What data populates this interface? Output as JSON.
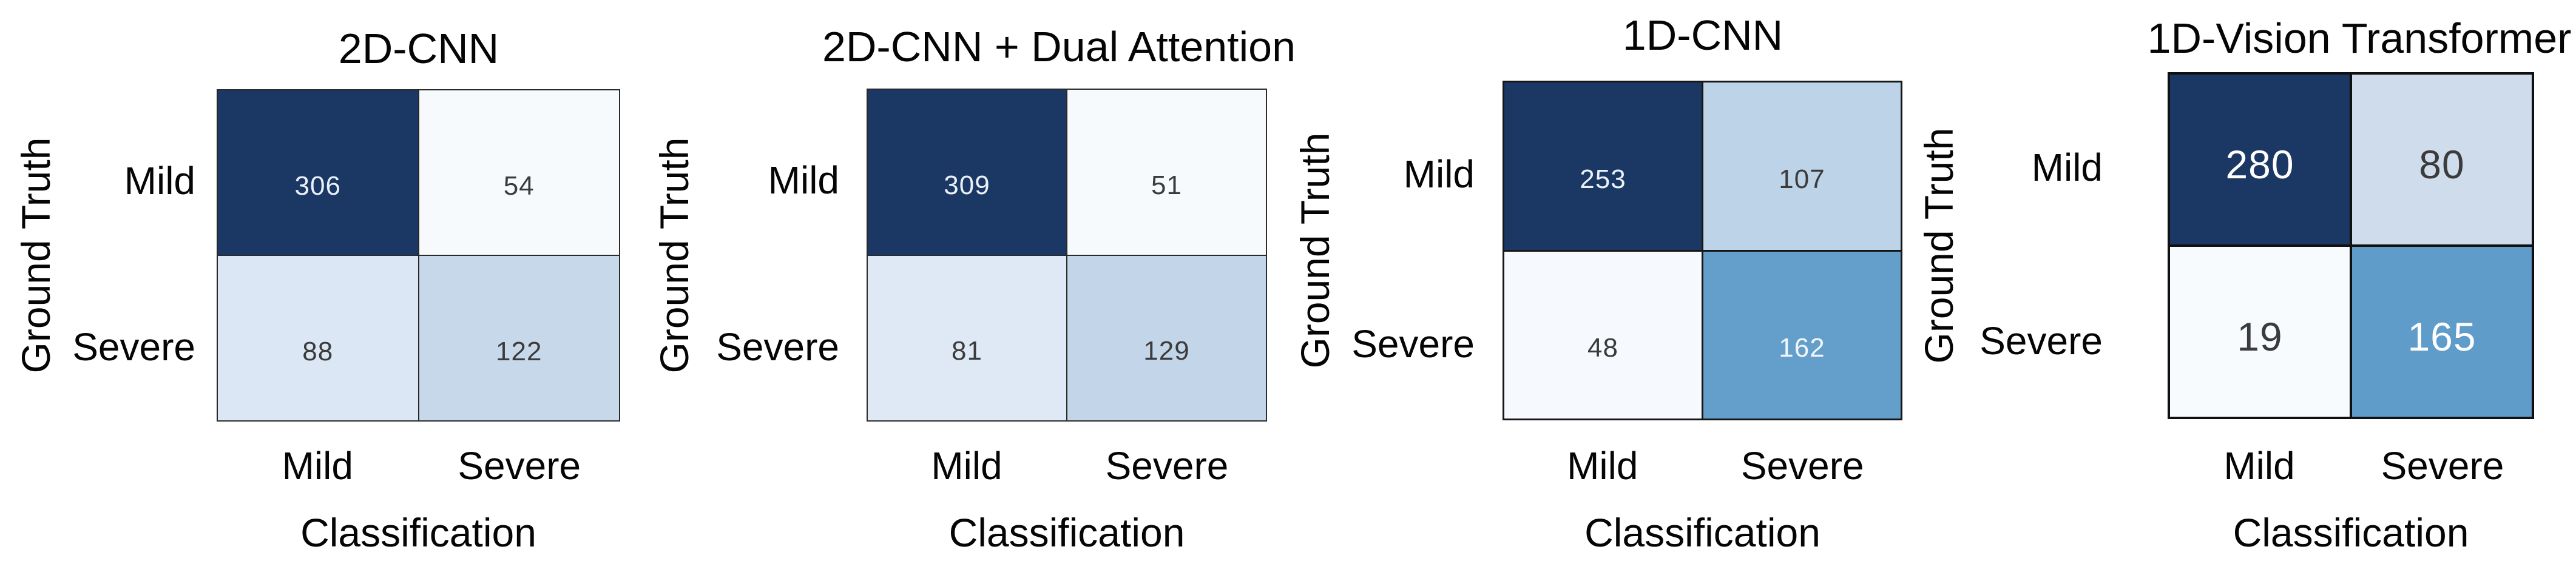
{
  "panels": [
    {
      "title": "2D-CNN",
      "y_axis_label": "Ground Truth",
      "x_axis_label": "Classification",
      "row_labels": [
        "Mild",
        "Severe"
      ],
      "col_labels": [
        "Mild",
        "Severe"
      ],
      "cells": [
        {
          "value": "306",
          "bg": "#1b3864",
          "fg": "#eaf0f8"
        },
        {
          "value": "54",
          "bg": "#f7fafd",
          "fg": "#3b3b3b"
        },
        {
          "value": "88",
          "bg": "#dbe7f4",
          "fg": "#3b3b3b"
        },
        {
          "value": "122",
          "bg": "#c7d8ea",
          "fg": "#3b3b3b"
        }
      ]
    },
    {
      "title": "2D-CNN + Dual Attention",
      "y_axis_label": "Ground Truth",
      "x_axis_label": "Classification",
      "row_labels": [
        "Mild",
        "Severe"
      ],
      "col_labels": [
        "Mild",
        "Severe"
      ],
      "cells": [
        {
          "value": "309",
          "bg": "#1b3864",
          "fg": "#eaf0f8"
        },
        {
          "value": "51",
          "bg": "#f7fafd",
          "fg": "#3b3b3b"
        },
        {
          "value": "81",
          "bg": "#dee9f5",
          "fg": "#3b3b3b"
        },
        {
          "value": "129",
          "bg": "#c3d6e9",
          "fg": "#3b3b3b"
        }
      ]
    },
    {
      "title": "1D-CNN",
      "y_axis_label": "Ground Truth",
      "x_axis_label": "Classification",
      "row_labels": [
        "Mild",
        "Severe"
      ],
      "col_labels": [
        "Mild",
        "Severe"
      ],
      "cells": [
        {
          "value": "253",
          "bg": "#1b3864",
          "fg": "#eaf0f8"
        },
        {
          "value": "107",
          "bg": "#bcd3e8",
          "fg": "#3b3b3b"
        },
        {
          "value": "48",
          "bg": "#f6f9fd",
          "fg": "#3b3b3b"
        },
        {
          "value": "162",
          "bg": "#649fcc",
          "fg": "#f2f6fa"
        }
      ]
    },
    {
      "title": "1D-Vision Transformer",
      "y_axis_label": "Ground Truth",
      "x_axis_label": "Classification",
      "row_labels": [
        "Mild",
        "Severe"
      ],
      "col_labels": [
        "Mild",
        "Severe"
      ],
      "cells": [
        {
          "value": "280",
          "bg": "#1b3864",
          "fg": "#ffffff"
        },
        {
          "value": "80",
          "bg": "#cfdcec",
          "fg": "#3b3b3b"
        },
        {
          "value": "19",
          "bg": "#f8fbfe",
          "fg": "#3b3b3b"
        },
        {
          "value": "165",
          "bg": "#5f9cca",
          "fg": "#ffffff"
        }
      ]
    }
  ],
  "chart_data": [
    {
      "type": "heatmap",
      "title": "2D-CNN",
      "xlabel": "Classification",
      "ylabel": "Ground Truth",
      "x_categories": [
        "Mild",
        "Severe"
      ],
      "y_categories": [
        "Mild",
        "Severe"
      ],
      "values": [
        [
          306,
          54
        ],
        [
          88,
          122
        ]
      ],
      "colormap": "Blues",
      "legend": "none",
      "grid": false
    },
    {
      "type": "heatmap",
      "title": "2D-CNN + Dual Attention",
      "xlabel": "Classification",
      "ylabel": "Ground Truth",
      "x_categories": [
        "Mild",
        "Severe"
      ],
      "y_categories": [
        "Mild",
        "Severe"
      ],
      "values": [
        [
          309,
          51
        ],
        [
          81,
          129
        ]
      ],
      "colormap": "Blues",
      "legend": "none",
      "grid": false
    },
    {
      "type": "heatmap",
      "title": "1D-CNN",
      "xlabel": "Classification",
      "ylabel": "Ground Truth",
      "x_categories": [
        "Mild",
        "Severe"
      ],
      "y_categories": [
        "Mild",
        "Severe"
      ],
      "values": [
        [
          253,
          107
        ],
        [
          48,
          162
        ]
      ],
      "colormap": "Blues",
      "legend": "none",
      "grid": false
    },
    {
      "type": "heatmap",
      "title": "1D-Vision Transformer",
      "xlabel": "Classification",
      "ylabel": "Ground Truth",
      "x_categories": [
        "Mild",
        "Severe"
      ],
      "y_categories": [
        "Mild",
        "Severe"
      ],
      "values": [
        [
          280,
          80
        ],
        [
          19,
          165
        ]
      ],
      "colormap": "Blues",
      "legend": "none",
      "grid": false
    }
  ]
}
